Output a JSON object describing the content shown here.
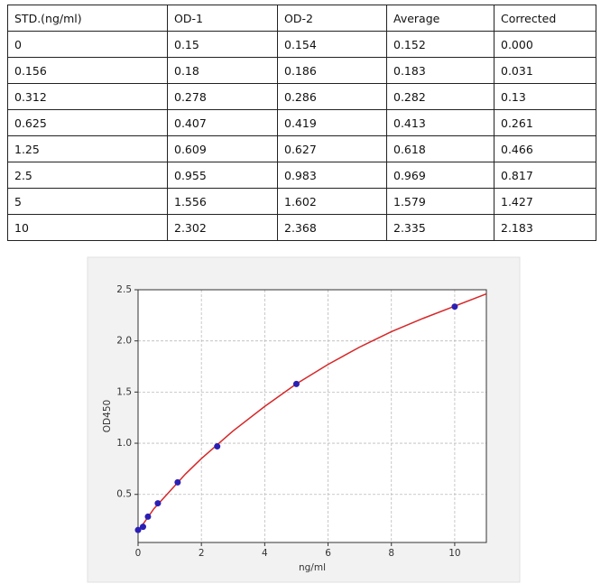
{
  "table": {
    "rows": [
      [
        "STD.(ng/ml)",
        "OD-1",
        "OD-2",
        "Average",
        "Corrected"
      ],
      [
        "0",
        "0.15",
        "0.154",
        "0.152",
        "0.000"
      ],
      [
        "0.156",
        "0.18",
        "0.186",
        "0.183",
        "0.031"
      ],
      [
        "0.312",
        "0.278",
        "0.286",
        "0.282",
        "0.13"
      ],
      [
        "0.625",
        "0.407",
        "0.419",
        "0.413",
        "0.261"
      ],
      [
        "1.25",
        "0.609",
        "0.627",
        "0.618",
        "0.466"
      ],
      [
        "2.5",
        "0.955",
        "0.983",
        "0.969",
        "0.817"
      ],
      [
        "5",
        "1.556",
        "1.602",
        "1.579",
        "1.427"
      ],
      [
        "10",
        "2.302",
        "2.368",
        "2.335",
        "2.183"
      ]
    ]
  },
  "chart_data": {
    "type": "scatter",
    "xlabel": "ng/ml",
    "ylabel": "OD450",
    "x": [
      0,
      0.156,
      0.312,
      0.625,
      1.25,
      2.5,
      5,
      10
    ],
    "values": [
      0.152,
      0.183,
      0.282,
      0.413,
      0.618,
      0.969,
      1.579,
      2.335
    ],
    "color": "#2a1fb5",
    "fit": {
      "color": "#d62728",
      "x": [
        0,
        0.5,
        1,
        1.5,
        2,
        3,
        4,
        5,
        6,
        7,
        8,
        9,
        10,
        11
      ],
      "values": [
        0.14,
        0.36,
        0.53,
        0.7,
        0.85,
        1.12,
        1.36,
        1.58,
        1.77,
        1.94,
        2.09,
        2.22,
        2.34,
        2.46
      ]
    },
    "xlim": [
      0,
      11
    ],
    "ylim": [
      0.03,
      2.5
    ],
    "xticks": [
      0,
      2,
      4,
      6,
      8,
      10
    ],
    "yticks": [
      0.5,
      {
        "value": 1,
        "label": "1.0"
      },
      1.5,
      {
        "value": 2,
        "label": "2.0"
      },
      2.5
    ],
    "grid": true
  }
}
